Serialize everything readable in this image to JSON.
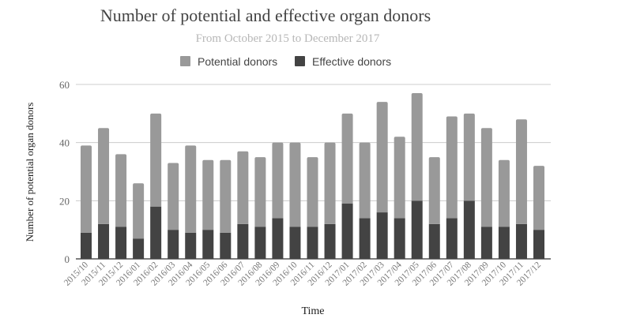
{
  "chart_data": {
    "type": "bar",
    "stacked": true,
    "title": "Number of potential and effective organ donors",
    "subtitle": "From October 2015 to December 2017",
    "xlabel": "Time",
    "ylabel": "Number of potential organ donors",
    "ylim": [
      0,
      60
    ],
    "yticks": [
      0,
      20,
      40,
      60
    ],
    "grid": true,
    "legend_position": "top",
    "categories": [
      "2015/10",
      "2015/11",
      "2015/12",
      "2016/01",
      "2016/02",
      "2016/03",
      "2016/04",
      "2016/05",
      "2016/06",
      "2016/07",
      "2016/08",
      "2016/09",
      "2016/10",
      "2016/11",
      "2016/12",
      "2017/01",
      "2017/02",
      "2017/03",
      "2017/04",
      "2017/05",
      "2017/06",
      "2017/07",
      "2017/08",
      "2017/09",
      "2017/10",
      "2017/11",
      "2017/12"
    ],
    "series": [
      {
        "name": "Effective donors",
        "color": "#434343",
        "values": [
          9,
          12,
          11,
          7,
          18,
          10,
          9,
          10,
          9,
          12,
          11,
          14,
          11,
          11,
          12,
          19,
          14,
          16,
          14,
          20,
          12,
          14,
          20,
          11,
          11,
          12,
          10
        ]
      },
      {
        "name": "Potential donors",
        "color": "#999999",
        "values": [
          30,
          33,
          25,
          19,
          32,
          23,
          30,
          24,
          25,
          25,
          24,
          26,
          29,
          24,
          28,
          31,
          26,
          38,
          28,
          37,
          23,
          35,
          30,
          34,
          23,
          36,
          22
        ]
      }
    ],
    "legend_order": [
      "Potential donors",
      "Effective donors"
    ]
  }
}
